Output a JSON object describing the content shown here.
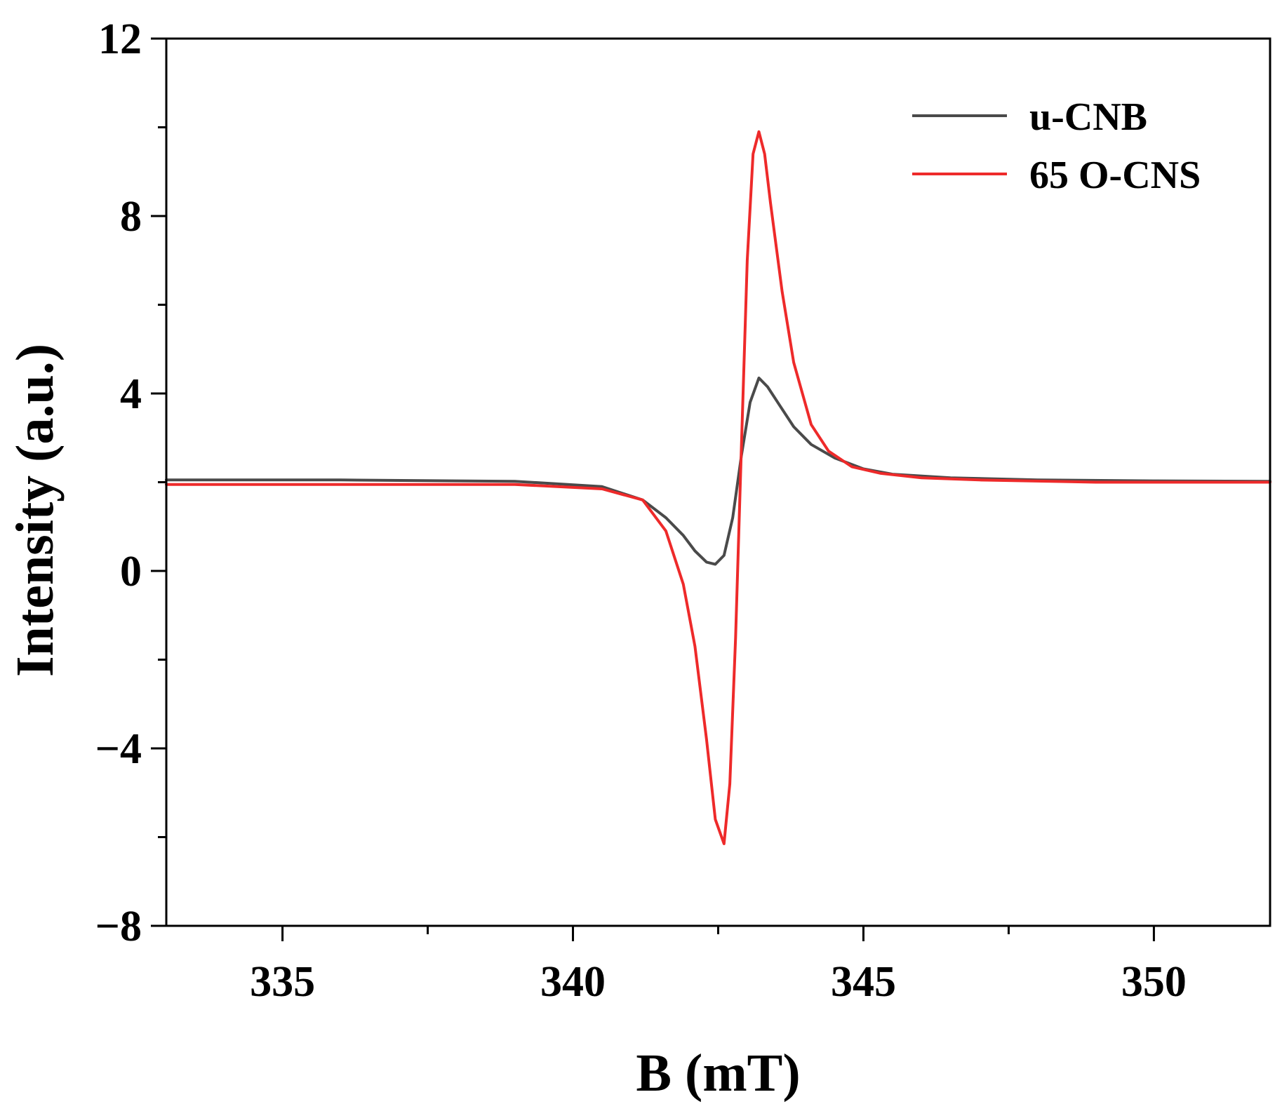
{
  "chart_data": {
    "type": "line",
    "title": "",
    "xlabel": "B (mT)",
    "ylabel": "Intensity (a.u.)",
    "xlim": [
      333,
      352
    ],
    "ylim": [
      -8,
      12
    ],
    "x_ticks": [
      335,
      340,
      345,
      350
    ],
    "x_minor_ticks": [
      337.5,
      342.5,
      347.5
    ],
    "y_ticks": [
      -8,
      -4,
      0,
      4,
      8,
      12
    ],
    "y_minor_ticks": [
      -6,
      -2,
      2,
      6,
      10
    ],
    "x_tick_labels": [
      "335",
      "340",
      "345",
      "350"
    ],
    "y_tick_labels": [
      "−8",
      "−4",
      "0",
      "4",
      "8",
      "12"
    ],
    "grid": false,
    "legend_position": "top-right",
    "series": [
      {
        "name": "u-CNB",
        "color": "#4a4a4a",
        "x": [
          333,
          336,
          339,
          340.5,
          341.2,
          341.6,
          341.9,
          342.1,
          342.3,
          342.45,
          342.6,
          342.75,
          342.9,
          343.05,
          343.2,
          343.35,
          343.55,
          343.8,
          344.1,
          344.5,
          345,
          345.5,
          346.5,
          348,
          350,
          352
        ],
        "y": [
          2.05,
          2.05,
          2.02,
          1.9,
          1.6,
          1.2,
          0.8,
          0.45,
          0.2,
          0.15,
          0.35,
          1.2,
          2.6,
          3.8,
          4.35,
          4.15,
          3.75,
          3.25,
          2.85,
          2.55,
          2.3,
          2.18,
          2.1,
          2.05,
          2.03,
          2.02
        ]
      },
      {
        "name": "65 O-CNS",
        "color": "#ee2a2a",
        "x": [
          333,
          336,
          339,
          340.5,
          341.2,
          341.6,
          341.9,
          342.1,
          342.3,
          342.45,
          342.6,
          342.7,
          342.8,
          342.9,
          343.0,
          343.1,
          343.2,
          343.3,
          343.4,
          343.6,
          343.8,
          344.1,
          344.4,
          344.8,
          345.3,
          346,
          347,
          349,
          352
        ],
        "y": [
          1.95,
          1.95,
          1.95,
          1.85,
          1.6,
          0.9,
          -0.3,
          -1.7,
          -3.8,
          -5.6,
          -6.15,
          -4.8,
          -1.5,
          2.8,
          7.0,
          9.4,
          9.9,
          9.4,
          8.3,
          6.3,
          4.7,
          3.3,
          2.7,
          2.35,
          2.2,
          2.1,
          2.05,
          2.0,
          2.0
        ]
      }
    ]
  }
}
